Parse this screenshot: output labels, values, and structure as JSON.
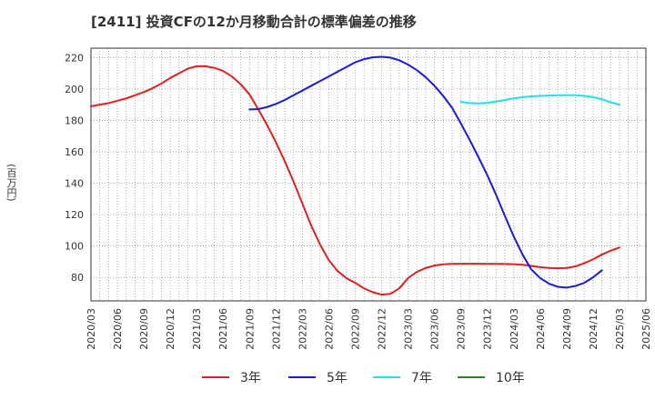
{
  "chart_data": {
    "type": "line",
    "title": "[2411]  投資CFの12か月移動合計の標準偏差の推移",
    "ylabel": "(百万円)",
    "xlabel": "",
    "ylim": [
      65,
      226
    ],
    "yticks": [
      80,
      100,
      120,
      140,
      160,
      180,
      200,
      220
    ],
    "x_start": "2020-03",
    "x_end": "2025-06",
    "xticks": [
      "2020/03",
      "2020/06",
      "2020/09",
      "2020/12",
      "2021/03",
      "2021/06",
      "2021/09",
      "2021/12",
      "2022/03",
      "2022/06",
      "2022/09",
      "2022/12",
      "2023/03",
      "2023/06",
      "2023/09",
      "2023/12",
      "2024/03",
      "2024/06",
      "2024/09",
      "2024/12",
      "2025/03",
      "2025/06"
    ],
    "grid": true,
    "legend_position": "bottom",
    "series": [
      {
        "name": "3年",
        "color": "#e02020",
        "values": [
          [
            "2020-03",
            189
          ],
          [
            "2020-04",
            190
          ],
          [
            "2020-05",
            191
          ],
          [
            "2020-06",
            192.5
          ],
          [
            "2020-07",
            194
          ],
          [
            "2020-08",
            196
          ],
          [
            "2020-09",
            198
          ],
          [
            "2020-10",
            200.5
          ],
          [
            "2020-11",
            203.5
          ],
          [
            "2020-12",
            207
          ],
          [
            "2021-01",
            210
          ],
          [
            "2021-02",
            213
          ],
          [
            "2021-03",
            214.5
          ],
          [
            "2021-04",
            214.5
          ],
          [
            "2021-05",
            213.5
          ],
          [
            "2021-06",
            211.5
          ],
          [
            "2021-07",
            208
          ],
          [
            "2021-08",
            203
          ],
          [
            "2021-09",
            196.5
          ],
          [
            "2021-10",
            187
          ],
          [
            "2021-11",
            177
          ],
          [
            "2021-12",
            166
          ],
          [
            "2022-01",
            154
          ],
          [
            "2022-02",
            141
          ],
          [
            "2022-03",
            127
          ],
          [
            "2022-04",
            113
          ],
          [
            "2022-05",
            101
          ],
          [
            "2022-06",
            91
          ],
          [
            "2022-07",
            84
          ],
          [
            "2022-08",
            79.5
          ],
          [
            "2022-09",
            76.5
          ],
          [
            "2022-10",
            73
          ],
          [
            "2022-11",
            70.5
          ],
          [
            "2022-12",
            69
          ],
          [
            "2023-01",
            69.5
          ],
          [
            "2023-02",
            73
          ],
          [
            "2023-03",
            79.5
          ],
          [
            "2023-04",
            83.5
          ],
          [
            "2023-05",
            86
          ],
          [
            "2023-06",
            87.5
          ],
          [
            "2023-07",
            88.3
          ],
          [
            "2023-08",
            88.6
          ],
          [
            "2023-09",
            88.7
          ],
          [
            "2023-10",
            88.7
          ],
          [
            "2023-11",
            88.7
          ],
          [
            "2023-12",
            88.6
          ],
          [
            "2024-01",
            88.6
          ],
          [
            "2024-02",
            88.5
          ],
          [
            "2024-03",
            88.4
          ],
          [
            "2024-04",
            88
          ],
          [
            "2024-05",
            87.3
          ],
          [
            "2024-06",
            86.5
          ],
          [
            "2024-07",
            86
          ],
          [
            "2024-08",
            85.8
          ],
          [
            "2024-09",
            86
          ],
          [
            "2024-10",
            87
          ],
          [
            "2024-11",
            89
          ],
          [
            "2024-12",
            91.5
          ],
          [
            "2025-01",
            94.5
          ],
          [
            "2025-02",
            97
          ],
          [
            "2025-03",
            99
          ]
        ]
      },
      {
        "name": "5年",
        "color": "#1a1adc",
        "values": [
          [
            "2021-09",
            187
          ],
          [
            "2021-10",
            187.2
          ],
          [
            "2021-11",
            188.5
          ],
          [
            "2021-12",
            190.5
          ],
          [
            "2022-01",
            193
          ],
          [
            "2022-02",
            196
          ],
          [
            "2022-03",
            199
          ],
          [
            "2022-04",
            202
          ],
          [
            "2022-05",
            205
          ],
          [
            "2022-06",
            208
          ],
          [
            "2022-07",
            211
          ],
          [
            "2022-08",
            214
          ],
          [
            "2022-09",
            217
          ],
          [
            "2022-10",
            219
          ],
          [
            "2022-11",
            220.2
          ],
          [
            "2022-12",
            220.5
          ],
          [
            "2023-01",
            220
          ],
          [
            "2023-02",
            218.3
          ],
          [
            "2023-03",
            215.5
          ],
          [
            "2023-04",
            212
          ],
          [
            "2023-05",
            207.5
          ],
          [
            "2023-06",
            202
          ],
          [
            "2023-07",
            195.5
          ],
          [
            "2023-08",
            188
          ],
          [
            "2023-09",
            178
          ],
          [
            "2023-10",
            167.5
          ],
          [
            "2023-11",
            156.5
          ],
          [
            "2023-12",
            145
          ],
          [
            "2024-01",
            132.5
          ],
          [
            "2024-02",
            119
          ],
          [
            "2024-03",
            106
          ],
          [
            "2024-04",
            94.5
          ],
          [
            "2024-05",
            85
          ],
          [
            "2024-06",
            79.5
          ],
          [
            "2024-07",
            76
          ],
          [
            "2024-08",
            74
          ],
          [
            "2024-09",
            73.5
          ],
          [
            "2024-10",
            74.5
          ],
          [
            "2024-11",
            76.5
          ],
          [
            "2024-12",
            80
          ],
          [
            "2025-01",
            84.5
          ]
        ]
      },
      {
        "name": "7年",
        "color": "#20e0e8",
        "values": [
          [
            "2023-09",
            191.8
          ],
          [
            "2023-10",
            191
          ],
          [
            "2023-11",
            190.8
          ],
          [
            "2023-12",
            191.2
          ],
          [
            "2024-01",
            192
          ],
          [
            "2024-02",
            193
          ],
          [
            "2024-03",
            194
          ],
          [
            "2024-04",
            194.8
          ],
          [
            "2024-05",
            195.3
          ],
          [
            "2024-06",
            195.6
          ],
          [
            "2024-07",
            195.8
          ],
          [
            "2024-08",
            196
          ],
          [
            "2024-09",
            196
          ],
          [
            "2024-10",
            196
          ],
          [
            "2024-11",
            195.6
          ],
          [
            "2024-12",
            194.8
          ],
          [
            "2025-01",
            193.5
          ],
          [
            "2025-02",
            191.5
          ],
          [
            "2025-03",
            190
          ]
        ]
      },
      {
        "name": "10年",
        "color": "#1a8a1a",
        "values": []
      }
    ]
  }
}
